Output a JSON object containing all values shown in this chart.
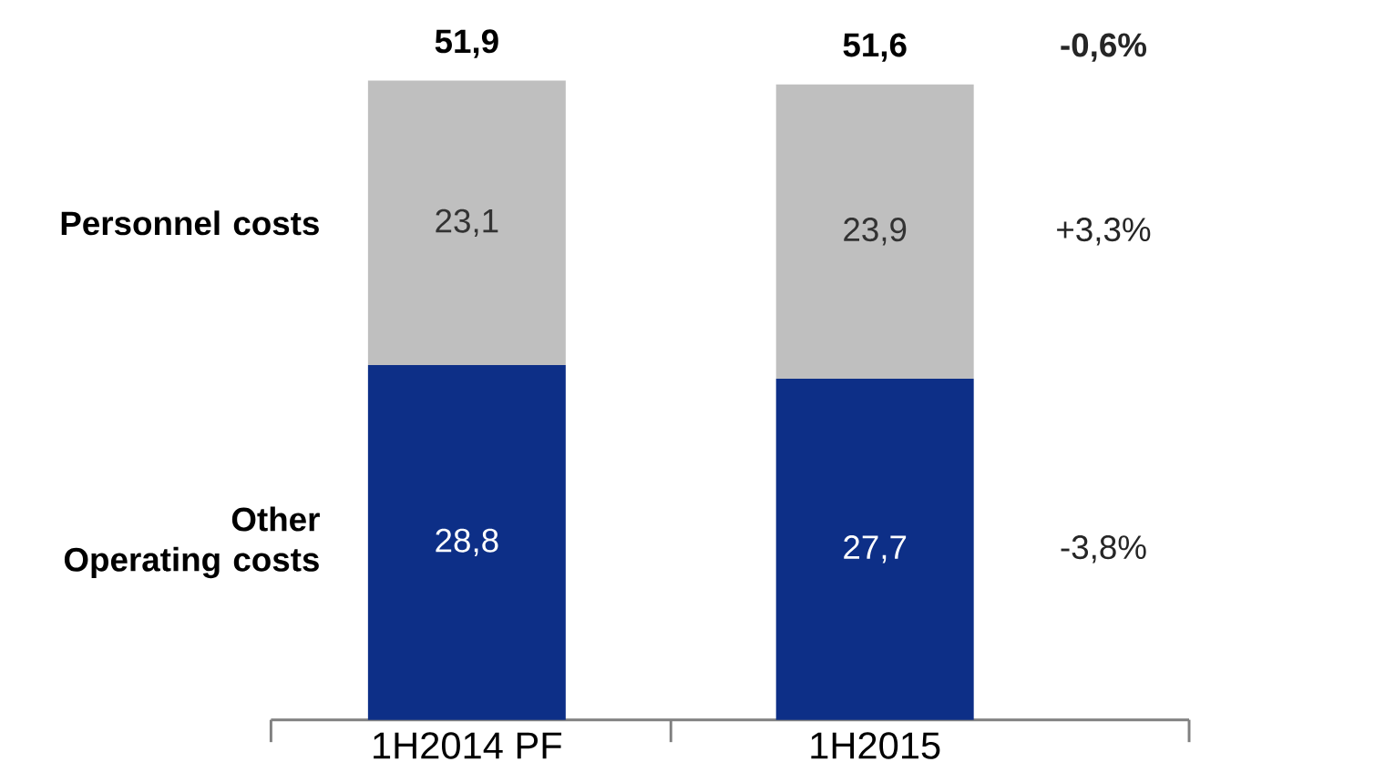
{
  "chart_data": {
    "type": "bar",
    "stacked": true,
    "categories": [
      "1H2014 PF",
      "1H2015"
    ],
    "series": [
      {
        "name": "Other Operating costs",
        "color": "#0d2f87",
        "values": [
          28.8,
          27.7
        ],
        "value_labels": [
          "28,8",
          "27,7"
        ]
      },
      {
        "name": "Personnel costs",
        "color": "#bfbfbf",
        "values": [
          23.1,
          23.9
        ],
        "value_labels": [
          "23,1",
          "23,9"
        ]
      }
    ],
    "totals": [
      "51,9",
      "51,6"
    ],
    "annotations": [
      "-0,6%",
      "+3,3%",
      "-3,8%"
    ],
    "legend": false
  }
}
